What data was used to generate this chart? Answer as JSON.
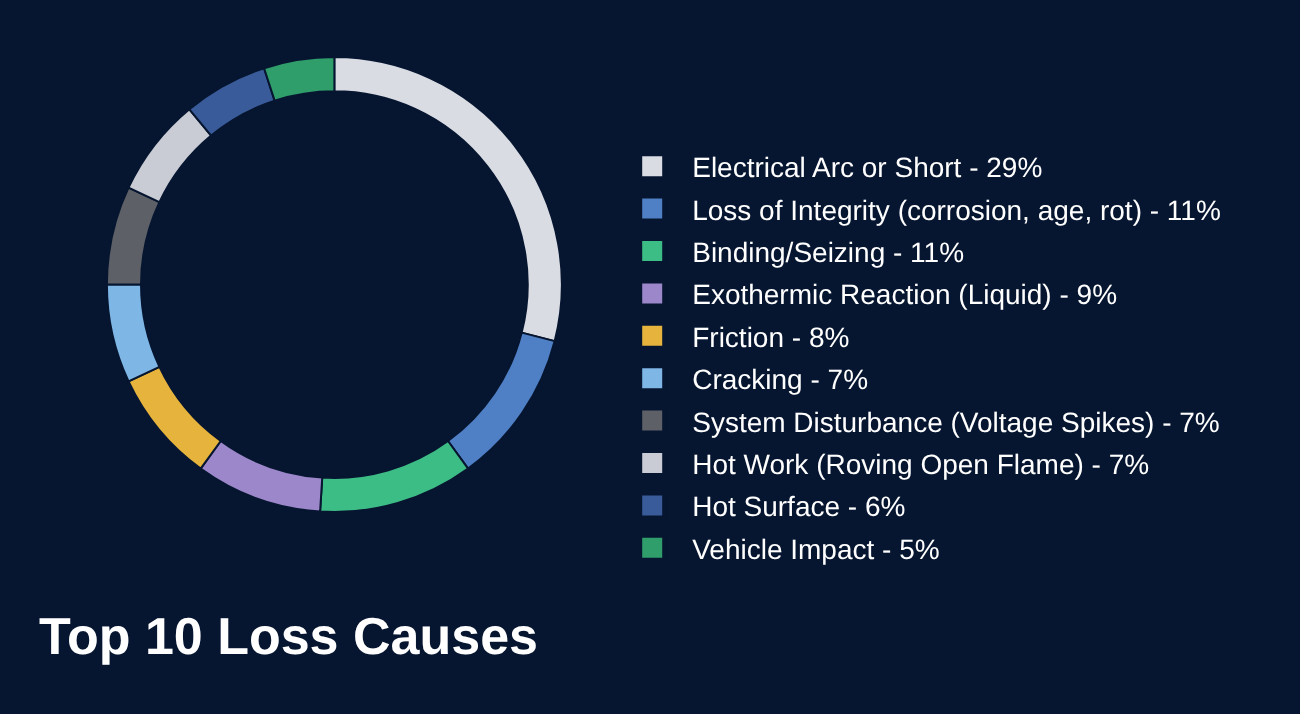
{
  "chart_data": {
    "type": "donut",
    "title": "Top 10 Loss Causes",
    "categories": [
      "Electrical Arc or Short - 29%",
      "Loss of Integrity (corrosion, age, rot) - 11%",
      "Binding/Seizing - 11%",
      "Exothermic Reaction (Liquid) - 9%",
      "Friction - 8%",
      "Cracking - 7%",
      "System Disturbance (Voltage Spikes) - 7%",
      "Hot Work (Roving Open Flame) - 7%",
      "Hot Surface - 6%",
      "Vehicle Impact - 5%"
    ],
    "values": [
      29,
      11,
      11,
      9,
      8,
      7,
      7,
      7,
      6,
      5
    ],
    "colors": [
      "#d9dce3",
      "#4f7fc4",
      "#3dbd86",
      "#9b87c9",
      "#e6b43c",
      "#7eb6e6",
      "#5d6066",
      "#c9ccd4",
      "#3a5b9a",
      "#2f9e6a"
    ],
    "legend": "right"
  }
}
